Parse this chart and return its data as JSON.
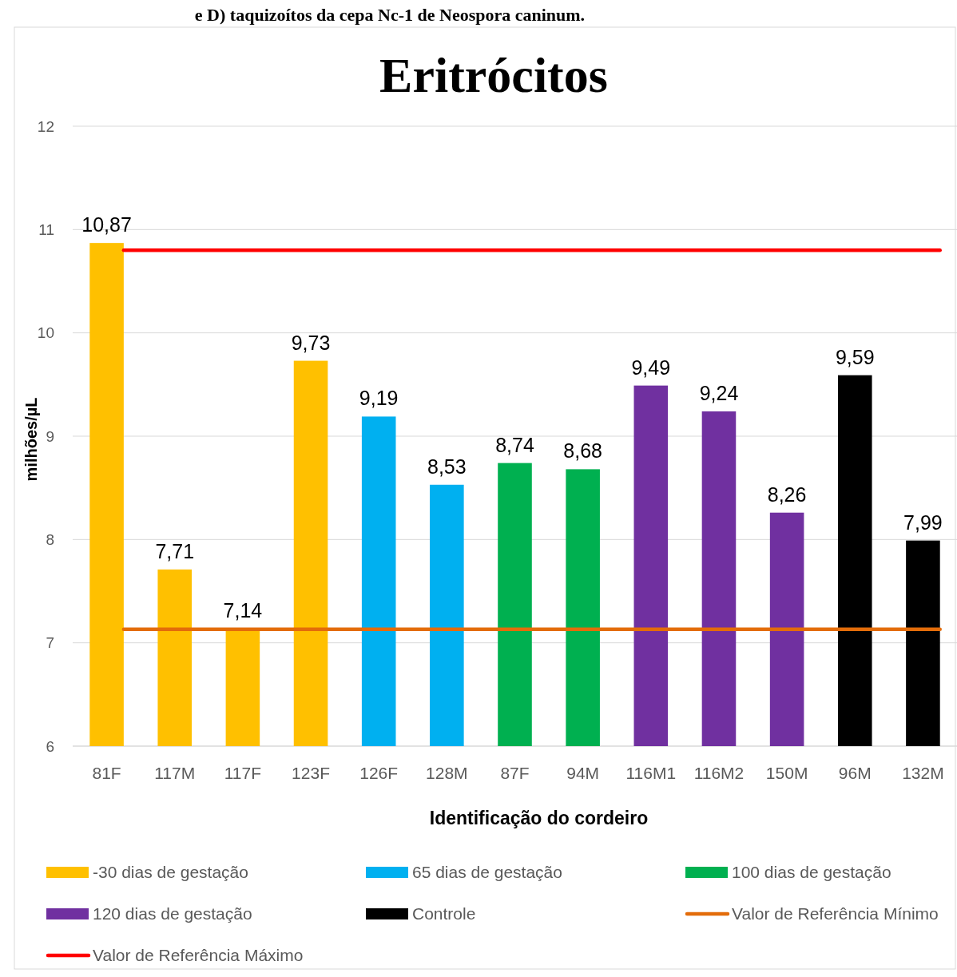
{
  "chart_data": {
    "type": "bar",
    "title": "Eritrócitos",
    "xlabel": "Identificação do cordeiro",
    "ylabel": "milhões/µL",
    "annotations": [
      "e D) taquizoítos da cepa Nc-1 de Neospora caninum."
    ],
    "categories": [
      "81F",
      "117M",
      "117F",
      "123F",
      "126F",
      "128M",
      "87F",
      "94M",
      "116M1",
      "116M2",
      "150M",
      "96M",
      "132M"
    ],
    "series": [
      {
        "name": "-30 dias de gestação",
        "color": "#ffc000",
        "values": [
          10.87,
          7.71,
          7.14,
          9.73,
          null,
          null,
          null,
          null,
          null,
          null,
          null,
          null,
          null
        ],
        "value_labels": [
          "10,87",
          "7,71",
          "7,14",
          "9,73",
          null,
          null,
          null,
          null,
          null,
          null,
          null,
          null,
          null
        ]
      },
      {
        "name": "65 dias de gestação",
        "color": "#00b0f0",
        "values": [
          null,
          null,
          null,
          null,
          9.19,
          8.53,
          null,
          null,
          null,
          null,
          null,
          null,
          null
        ],
        "value_labels": [
          null,
          null,
          null,
          null,
          "9,19",
          "8,53",
          null,
          null,
          null,
          null,
          null,
          null,
          null
        ]
      },
      {
        "name": "100 dias de gestação",
        "color": "#00b050",
        "values": [
          null,
          null,
          null,
          null,
          null,
          null,
          8.74,
          8.68,
          null,
          null,
          null,
          null,
          null
        ],
        "value_labels": [
          null,
          null,
          null,
          null,
          null,
          null,
          "8,74",
          "8,68",
          null,
          null,
          null,
          null,
          null
        ]
      },
      {
        "name": "120 dias de gestação",
        "color": "#7030a0",
        "values": [
          null,
          null,
          null,
          null,
          null,
          null,
          null,
          null,
          9.49,
          9.24,
          8.26,
          null,
          null
        ],
        "value_labels": [
          null,
          null,
          null,
          null,
          null,
          null,
          null,
          null,
          "9,49",
          "9,24",
          "8,26",
          null,
          null
        ]
      },
      {
        "name": "Controle",
        "color": "#000000",
        "values": [
          null,
          null,
          null,
          null,
          null,
          null,
          null,
          null,
          null,
          null,
          null,
          9.59,
          7.99
        ],
        "value_labels": [
          null,
          null,
          null,
          null,
          null,
          null,
          null,
          null,
          null,
          null,
          null,
          "9,59",
          "7,99"
        ]
      }
    ],
    "ref_lines": [
      {
        "axis": "y",
        "value": 7.13,
        "label": "Valor de Referência Mínimo",
        "color": "#e36c0a"
      },
      {
        "axis": "y",
        "value": 10.8,
        "label": "Valor de Referência Máximo",
        "color": "#ff0000"
      }
    ],
    "ylim": [
      6,
      12
    ],
    "yticks": [
      6,
      7,
      8,
      9,
      10,
      11,
      12
    ],
    "grid": "y",
    "legend": "bottom"
  }
}
